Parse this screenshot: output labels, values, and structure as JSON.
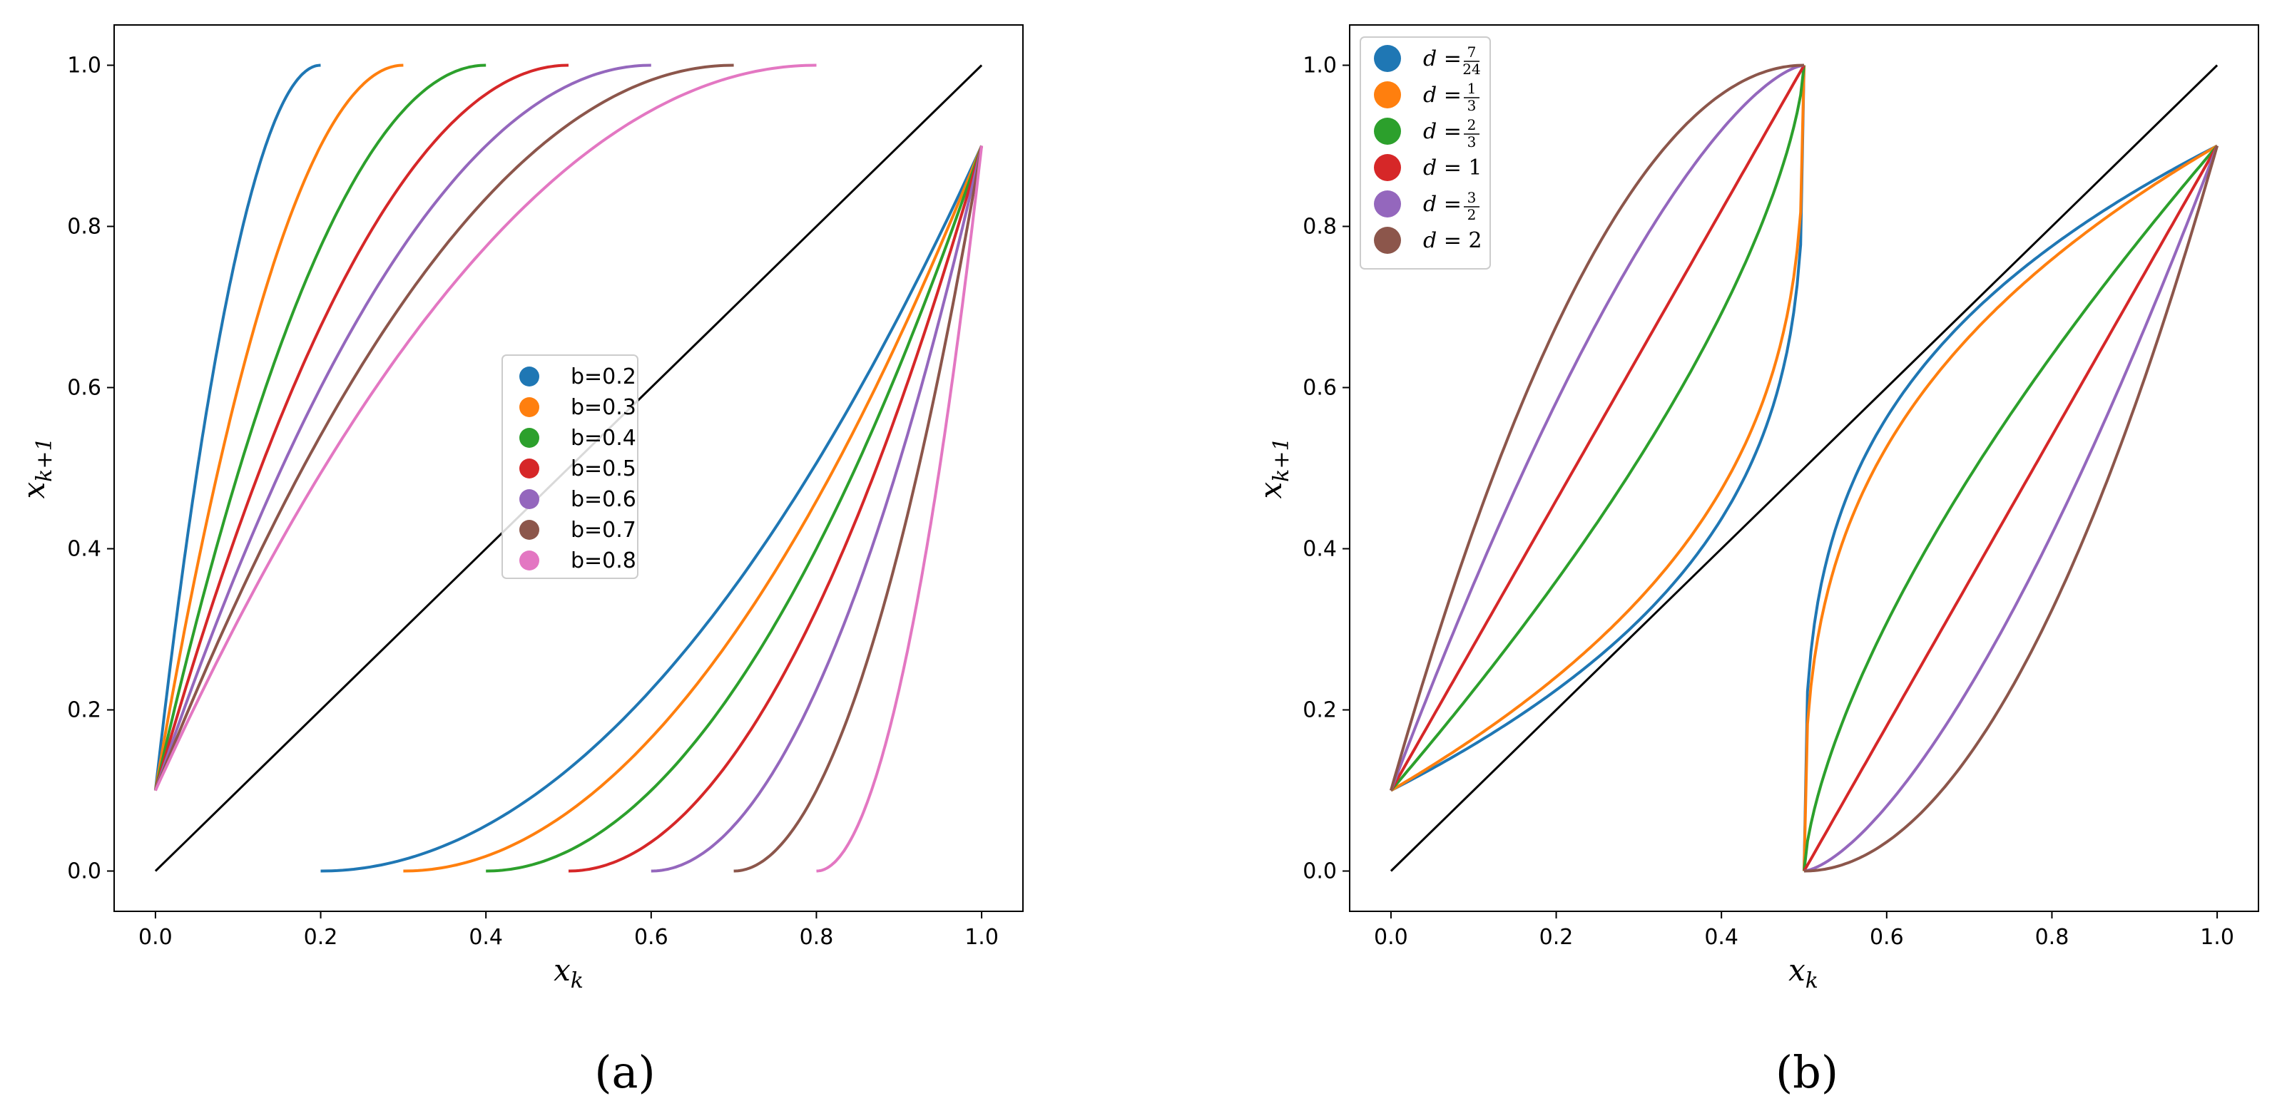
{
  "chart_data": [
    {
      "id": "a",
      "type": "line",
      "caption": "(a)",
      "xlabel": "x_k",
      "ylabel": "x_{k+1}",
      "xlim": [
        -0.05,
        1.05
      ],
      "ylim": [
        -0.05,
        1.05
      ],
      "x_ticks": [
        "0.0",
        "0.2",
        "0.4",
        "0.6",
        "0.8",
        "1.0"
      ],
      "y_ticks": [
        "0.0",
        "0.2",
        "0.4",
        "0.6",
        "0.8",
        "1.0"
      ],
      "legend_position": "center",
      "identity_line": {
        "x": [
          0,
          1
        ],
        "y": [
          0,
          1
        ],
        "color": "#000000"
      },
      "series": [
        {
          "name": "b=0.2",
          "b": 0.2,
          "color": "#1f77b4"
        },
        {
          "name": "b=0.3",
          "b": 0.3,
          "color": "#ff7f0e"
        },
        {
          "name": "b=0.4",
          "b": 0.4,
          "color": "#2ca02c"
        },
        {
          "name": "b=0.5",
          "b": 0.5,
          "color": "#d62728"
        },
        {
          "name": "b=0.6",
          "b": 0.6,
          "color": "#9467bd"
        },
        {
          "name": "b=0.7",
          "b": 0.7,
          "color": "#8c564b"
        },
        {
          "name": "b=0.8",
          "b": 0.8,
          "color": "#e377c2"
        }
      ],
      "branch_left": {
        "x_start": 0,
        "y_start": 0.1,
        "x_end": "b",
        "y_end": 1.0
      },
      "branch_right": {
        "x_start": "b",
        "y_start": 0.0,
        "x_end": 1.0,
        "y_end": 0.9
      }
    },
    {
      "id": "b",
      "type": "line",
      "caption": "(b)",
      "xlabel": "x_k",
      "ylabel": "x_{k+1}",
      "xlim": [
        -0.05,
        1.05
      ],
      "ylim": [
        -0.05,
        1.05
      ],
      "x_ticks": [
        "0.0",
        "0.2",
        "0.4",
        "0.6",
        "0.8",
        "1.0"
      ],
      "y_ticks": [
        "0.0",
        "0.2",
        "0.4",
        "0.6",
        "0.8",
        "1.0"
      ],
      "legend_position": "top-left",
      "identity_line": {
        "x": [
          0,
          1
        ],
        "y": [
          0,
          1
        ],
        "color": "#000000"
      },
      "split": 0.5,
      "series": [
        {
          "name": "d=7/24",
          "d": 0.2917,
          "num": "7",
          "den": "24",
          "color": "#1f77b4"
        },
        {
          "name": "d=1/3",
          "d": 0.3333,
          "num": "1",
          "den": "3",
          "color": "#ff7f0e"
        },
        {
          "name": "d=2/3",
          "d": 0.6667,
          "num": "2",
          "den": "3",
          "color": "#2ca02c"
        },
        {
          "name": "d=1",
          "d": 1,
          "num": "1",
          "den": "",
          "color": "#d62728"
        },
        {
          "name": "d=3/2",
          "d": 1.5,
          "num": "3",
          "den": "2",
          "color": "#9467bd"
        },
        {
          "name": "d=2",
          "d": 2,
          "num": "2",
          "den": "",
          "color": "#8c564b"
        }
      ],
      "branch_left": {
        "x_start": 0,
        "y_start": 0.1,
        "x_end": 0.5,
        "y_end": 1.0
      },
      "branch_right": {
        "x_start": 0.5,
        "y_start": 0.0,
        "x_end": 1.0,
        "y_end": 0.9
      }
    }
  ]
}
